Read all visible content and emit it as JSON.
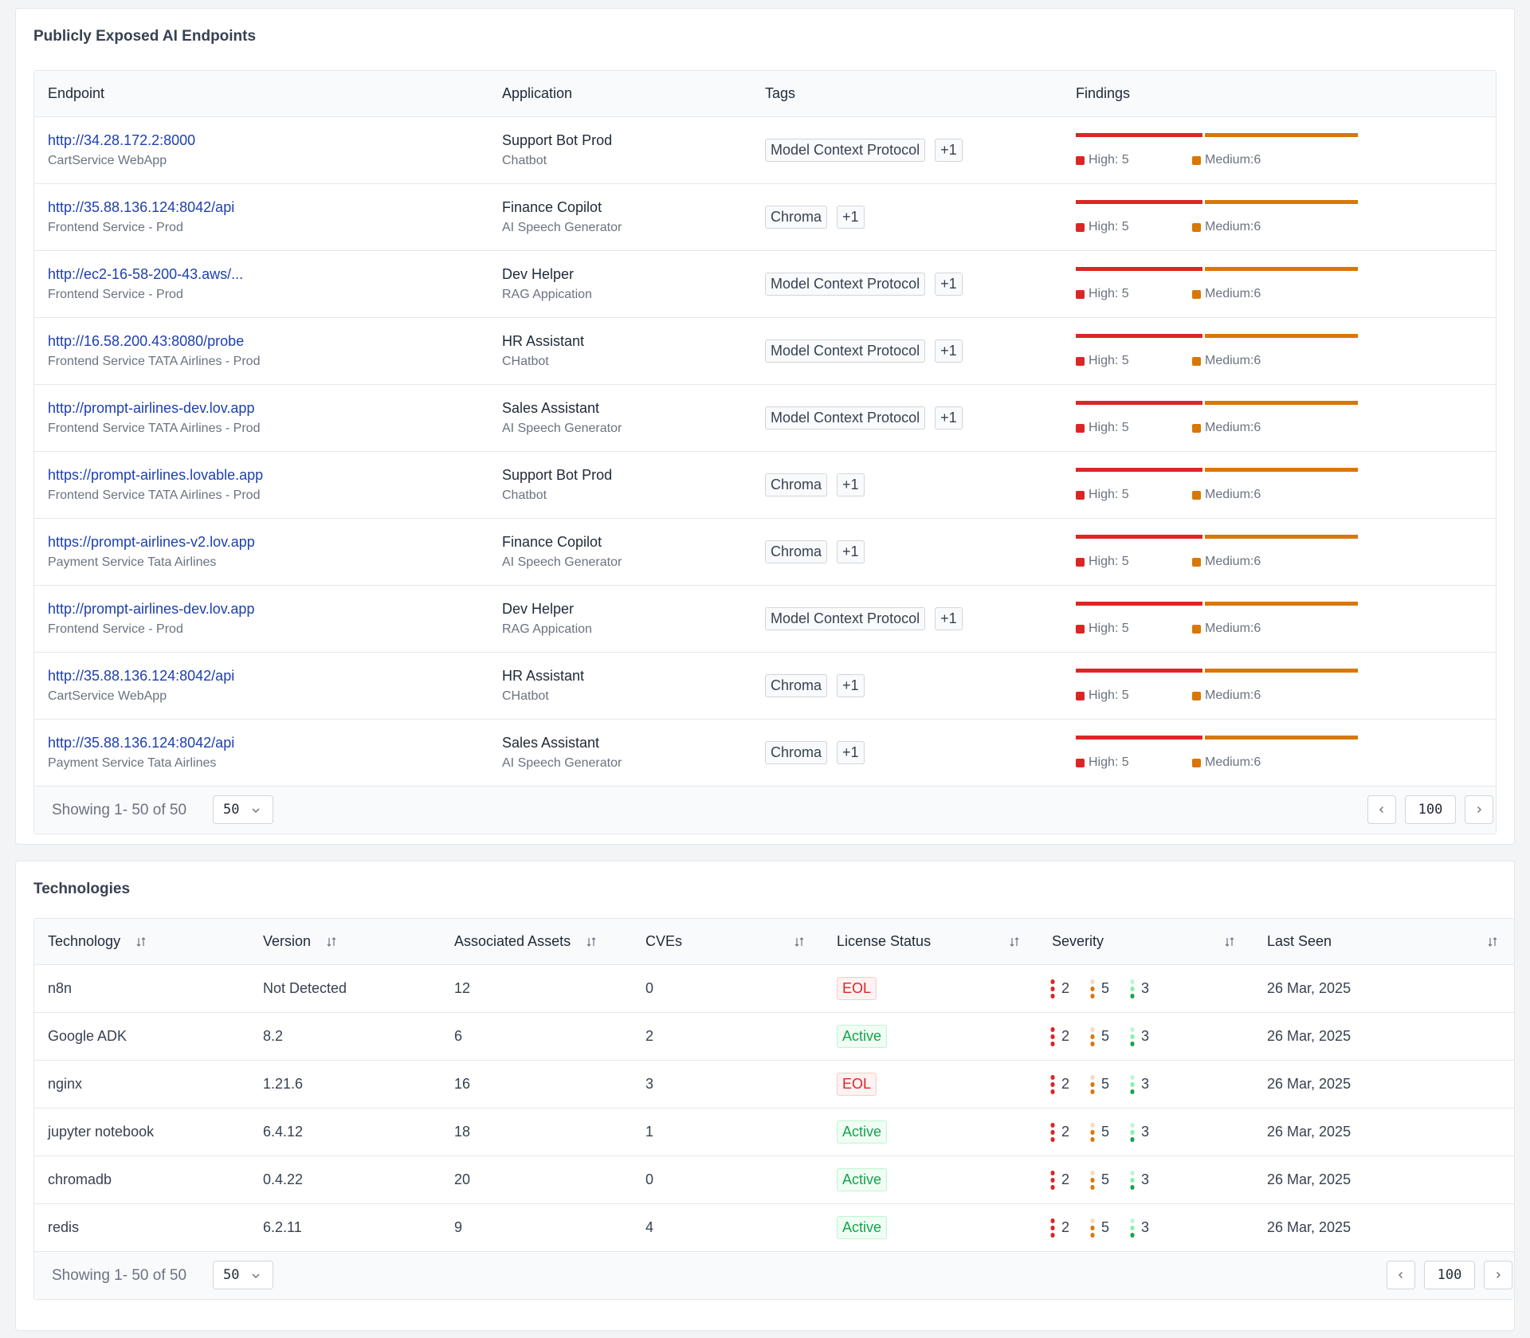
{
  "endpoints_card": {
    "title": "Publicly Exposed AI Endpoints",
    "columns": [
      "Endpoint",
      "Application",
      "Tags",
      "Findings"
    ],
    "rows": [
      {
        "url": "http://34.28.172.2:8000",
        "service": "CartService WebApp",
        "app": "Support Bot Prod",
        "app_type": "Chatbot",
        "tag": "Model Context Protocol",
        "more": "+1",
        "high": "High: 5",
        "medium": "Medium:6"
      },
      {
        "url": "http://35.88.136.124:8042/api",
        "service": "Frontend Service - Prod",
        "app": "Finance Copilot",
        "app_type": "AI Speech Generator",
        "tag": "Chroma",
        "more": "+1",
        "high": "High: 5",
        "medium": "Medium:6"
      },
      {
        "url": "http://ec2-16-58-200-43.aws/...",
        "service": "Frontend Service - Prod",
        "app": "Dev Helper",
        "app_type": "RAG Appication",
        "tag": "Model Context Protocol",
        "more": "+1",
        "high": "High: 5",
        "medium": "Medium:6"
      },
      {
        "url": "http://16.58.200.43:8080/probe",
        "service": "Frontend Service TATA Airlines - Prod",
        "app": "HR Assistant",
        "app_type": "CHatbot",
        "tag": "Model Context Protocol",
        "more": "+1",
        "high": "High: 5",
        "medium": "Medium:6"
      },
      {
        "url": "http://prompt-airlines-dev.lov.app",
        "service": "Frontend Service TATA Airlines - Prod",
        "app": "Sales Assistant",
        "app_type": "AI Speech Generator",
        "tag": "Model Context Protocol",
        "more": "+1",
        "high": "High: 5",
        "medium": "Medium:6"
      },
      {
        "url": "https://prompt-airlines.lovable.app",
        "service": "Frontend Service TATA Airlines - Prod",
        "app": "Support Bot Prod",
        "app_type": "Chatbot",
        "tag": "Chroma",
        "more": "+1",
        "high": "High: 5",
        "medium": "Medium:6"
      },
      {
        "url": "https://prompt-airlines-v2.lov.app",
        "service": "Payment Service Tata Airlines",
        "app": "Finance Copilot",
        "app_type": "AI Speech Generator",
        "tag": "Chroma",
        "more": "+1",
        "high": "High: 5",
        "medium": "Medium:6"
      },
      {
        "url": "http://prompt-airlines-dev.lov.app",
        "service": "Frontend Service - Prod",
        "app": "Dev Helper",
        "app_type": "RAG Appication",
        "tag": "Model Context Protocol",
        "more": "+1",
        "high": "High: 5",
        "medium": "Medium:6"
      },
      {
        "url": "http://35.88.136.124:8042/api",
        "service": "CartService WebApp",
        "app": "HR Assistant",
        "app_type": "CHatbot",
        "tag": "Chroma",
        "more": "+1",
        "high": "High: 5",
        "medium": "Medium:6"
      },
      {
        "url": "http://35.88.136.124:8042/api",
        "service": "Payment Service Tata Airlines",
        "app": "Sales Assistant",
        "app_type": "AI Speech Generator",
        "tag": "Chroma",
        "more": "+1",
        "high": "High: 5",
        "medium": "Medium:6"
      }
    ],
    "footer": {
      "showing": "Showing 1- 50 of 50",
      "page_size": "50",
      "page": "100"
    }
  },
  "technologies_card": {
    "title": "Technologies",
    "columns": [
      "Technology",
      "Version",
      "Associated Assets",
      "CVEs",
      "License Status",
      "Severity",
      "Last Seen"
    ],
    "rows": [
      {
        "tech": "n8n",
        "version": "Not Detected",
        "assets": "12",
        "cves": "0",
        "license": "EOL",
        "sev_high": "2",
        "sev_med": "5",
        "sev_low": "3",
        "last_seen": "26 Mar, 2025"
      },
      {
        "tech": "Google ADK",
        "version": "8.2",
        "assets": "6",
        "cves": "2",
        "license": "Active",
        "sev_high": "2",
        "sev_med": "5",
        "sev_low": "3",
        "last_seen": "26 Mar, 2025"
      },
      {
        "tech": "nginx",
        "version": "1.21.6",
        "assets": "16",
        "cves": "3",
        "license": "EOL",
        "sev_high": "2",
        "sev_med": "5",
        "sev_low": "3",
        "last_seen": "26 Mar, 2025"
      },
      {
        "tech": "jupyter notebook",
        "version": "6.4.12",
        "assets": "18",
        "cves": "1",
        "license": "Active",
        "sev_high": "2",
        "sev_med": "5",
        "sev_low": "3",
        "last_seen": "26 Mar, 2025"
      },
      {
        "tech": "chromadb",
        "version": "0.4.22",
        "assets": "20",
        "cves": "0",
        "license": "Active",
        "sev_high": "2",
        "sev_med": "5",
        "sev_low": "3",
        "last_seen": "26 Mar, 2025"
      },
      {
        "tech": "redis",
        "version": "6.2.11",
        "assets": "9",
        "cves": "4",
        "license": "Active",
        "sev_high": "2",
        "sev_med": "5",
        "sev_low": "3",
        "last_seen": "26 Mar, 2025"
      }
    ],
    "footer": {
      "showing": "Showing 1- 50 of 50",
      "page_size": "50",
      "page": "100"
    }
  },
  "colors": {
    "high": "#dc2626",
    "medium": "#d97706",
    "low": "#16a34a",
    "link": "#1e40af"
  }
}
